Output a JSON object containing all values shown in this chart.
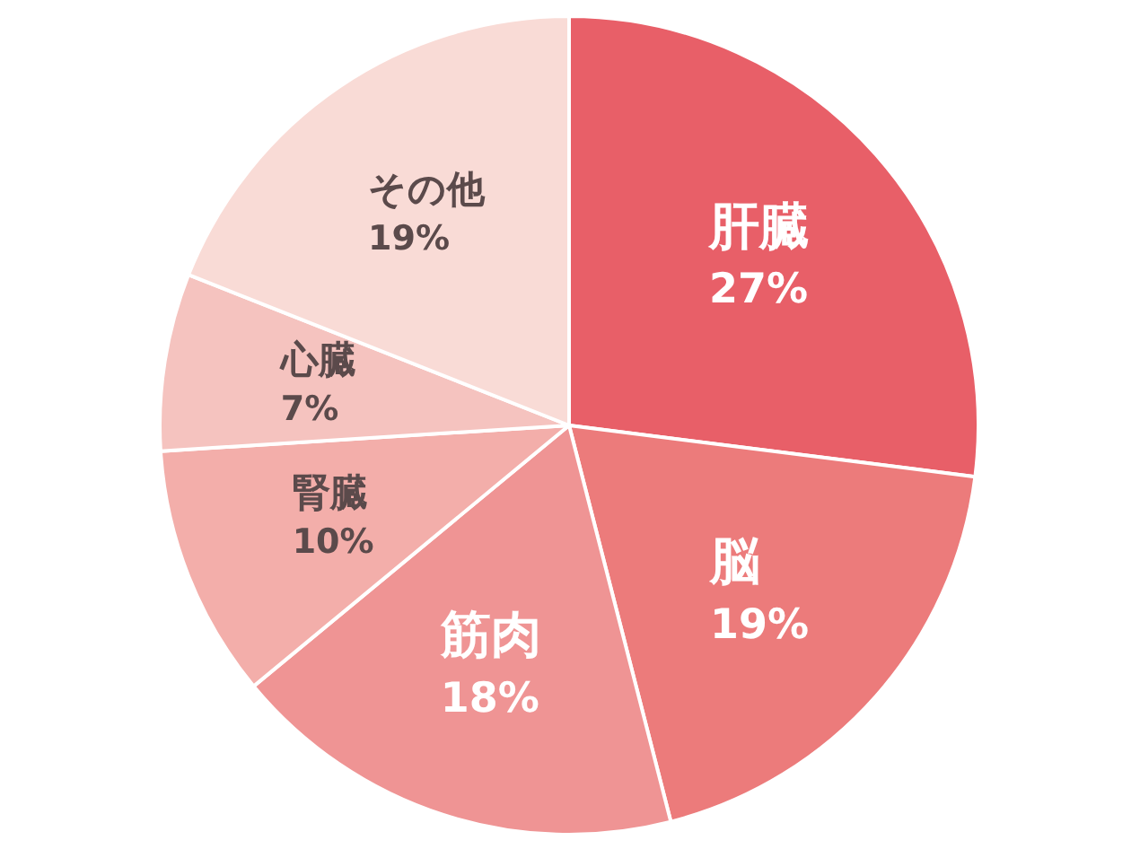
{
  "chart_data": {
    "type": "pie",
    "categories": [
      "肝臓",
      "脳",
      "筋肉",
      "腎臓",
      "心臓",
      "その他"
    ],
    "values": [
      27,
      19,
      18,
      10,
      7,
      19
    ],
    "colors": [
      "#e85f68",
      "#ec7b7b",
      "#ef9494",
      "#f3aeaa",
      "#f5c3bf",
      "#f9dbd6"
    ],
    "value_labels": [
      "27%",
      "19%",
      "18%",
      "10%",
      "7%",
      "19%"
    ]
  }
}
